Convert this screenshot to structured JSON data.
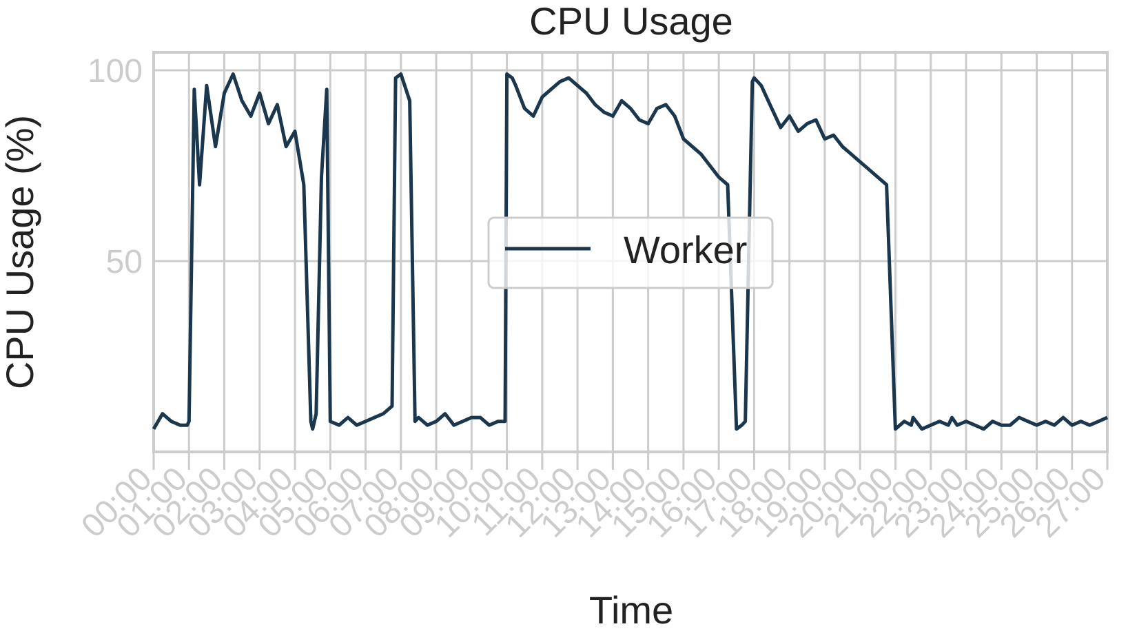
{
  "chart_data": {
    "type": "line",
    "title": "CPU Usage",
    "xlabel": "Time",
    "ylabel": "CPU Usage (%)",
    "ylim": [
      0,
      100
    ],
    "yticks": [
      50,
      100
    ],
    "x_range_hours": [
      0,
      27
    ],
    "xticks": [
      "00:00",
      "01:00",
      "02:00",
      "03:00",
      "04:00",
      "05:00",
      "06:00",
      "07:00",
      "08:00",
      "09:00",
      "10:00",
      "11:00",
      "12:00",
      "13:00",
      "14:00",
      "15:00",
      "16:00",
      "17:00",
      "18:00",
      "19:00",
      "20:00",
      "21:00",
      "22:00",
      "23:00",
      "24:00",
      "25:00",
      "26:00",
      "27:00"
    ],
    "grid": true,
    "legend_position": "center",
    "series": [
      {
        "name": "Worker",
        "color": "#1b374d",
        "x_hours": [
          0.0,
          0.25,
          0.5,
          0.75,
          0.95,
          1.0,
          1.15,
          1.3,
          1.5,
          1.75,
          2.0,
          2.25,
          2.5,
          2.75,
          3.0,
          3.25,
          3.5,
          3.75,
          4.0,
          4.25,
          4.45,
          4.5,
          4.6,
          4.75,
          4.9,
          5.0,
          5.25,
          5.5,
          5.75,
          6.0,
          6.25,
          6.5,
          6.75,
          6.85,
          7.0,
          7.25,
          7.4,
          7.5,
          7.75,
          8.0,
          8.25,
          8.5,
          8.75,
          9.0,
          9.25,
          9.5,
          9.75,
          9.95,
          10.0,
          10.15,
          10.25,
          10.5,
          10.75,
          11.0,
          11.25,
          11.5,
          11.75,
          12.0,
          12.25,
          12.5,
          12.75,
          13.0,
          13.25,
          13.5,
          13.75,
          14.0,
          14.25,
          14.5,
          14.75,
          15.0,
          15.25,
          15.5,
          15.75,
          16.0,
          16.25,
          16.5,
          16.65,
          16.75,
          16.95,
          17.0,
          17.2,
          17.5,
          17.75,
          18.0,
          18.25,
          18.5,
          18.75,
          19.0,
          19.25,
          19.5,
          19.75,
          20.0,
          20.25,
          20.5,
          20.75,
          21.0,
          21.25,
          21.45,
          21.5,
          21.75,
          22.0,
          22.25,
          22.5,
          22.6,
          22.75,
          23.0,
          23.25,
          23.5,
          23.75,
          24.0,
          24.25,
          24.5,
          24.75,
          25.0,
          25.25,
          25.5,
          25.75,
          26.0,
          26.25,
          26.5,
          26.75,
          27.0
        ],
        "values": [
          6,
          10,
          8,
          7,
          7,
          8,
          95,
          70,
          96,
          80,
          94,
          99,
          92,
          88,
          94,
          86,
          91,
          80,
          84,
          70,
          8,
          6,
          10,
          72,
          95,
          8,
          7,
          9,
          7,
          8,
          9,
          10,
          12,
          98,
          99,
          92,
          8,
          9,
          7,
          8,
          10,
          7,
          8,
          9,
          9,
          7,
          8,
          8,
          99,
          98,
          96,
          90,
          88,
          93,
          95,
          97,
          98,
          96,
          94,
          91,
          89,
          88,
          92,
          90,
          87,
          86,
          90,
          91,
          88,
          82,
          80,
          78,
          75,
          72,
          70,
          6,
          7,
          8,
          97,
          98,
          96,
          90,
          85,
          88,
          84,
          86,
          87,
          82,
          83,
          80,
          78,
          76,
          74,
          72,
          70,
          6,
          8,
          7,
          9,
          6,
          7,
          8,
          7,
          9,
          7,
          8,
          7,
          6,
          8,
          7,
          7,
          9,
          8,
          7,
          8,
          7,
          9,
          7,
          8,
          7,
          8,
          9
        ]
      }
    ]
  }
}
